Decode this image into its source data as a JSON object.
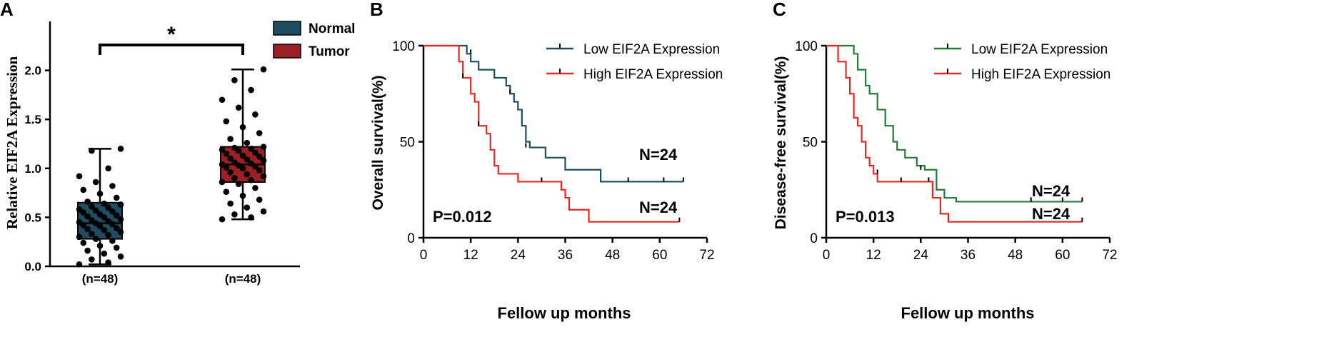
{
  "chart_data": [
    {
      "panel_label": "A",
      "type": "box",
      "ylabel": "Relative EIF2A Expression",
      "ylim": [
        0,
        2.5
      ],
      "yticks": [
        "0.0",
        "0.5",
        "1.0",
        "1.5",
        "2.0"
      ],
      "ytick_values": [
        0,
        0.5,
        1.0,
        1.5,
        2.0
      ],
      "categories": [
        "(n=48)",
        "(n=48)"
      ],
      "legend": [
        "Normal",
        "Tumor"
      ],
      "colors": [
        "#1e4c61",
        "#9c1f25"
      ],
      "significance": "*",
      "series": [
        {
          "name": "Normal",
          "stats": {
            "min": 0.02,
            "q1": 0.28,
            "median": 0.44,
            "q3": 0.65,
            "max": 1.2
          },
          "points": [
            0.02,
            0.04,
            0.07,
            0.1,
            0.13,
            0.16,
            0.19,
            0.21,
            0.24,
            0.26,
            0.28,
            0.3,
            0.32,
            0.33,
            0.35,
            0.37,
            0.38,
            0.39,
            0.41,
            0.42,
            0.43,
            0.44,
            0.45,
            0.46,
            0.47,
            0.48,
            0.5,
            0.51,
            0.52,
            0.53,
            0.55,
            0.56,
            0.57,
            0.58,
            0.6,
            0.61,
            0.63,
            0.64,
            0.66,
            0.7,
            0.74,
            0.78,
            0.82,
            0.86,
            0.92,
            1.0,
            1.18,
            1.2
          ]
        },
        {
          "name": "Tumor",
          "stats": {
            "min": 0.48,
            "q1": 0.86,
            "median": 1.04,
            "q3": 1.22,
            "max": 2.01
          },
          "points": [
            0.48,
            0.5,
            0.53,
            0.56,
            0.6,
            0.64,
            0.68,
            0.72,
            0.76,
            0.8,
            0.84,
            0.86,
            0.88,
            0.9,
            0.92,
            0.94,
            0.96,
            0.98,
            1.0,
            1.01,
            1.02,
            1.03,
            1.04,
            1.05,
            1.06,
            1.08,
            1.09,
            1.1,
            1.12,
            1.13,
            1.15,
            1.16,
            1.18,
            1.19,
            1.2,
            1.21,
            1.22,
            1.26,
            1.3,
            1.36,
            1.42,
            1.48,
            1.55,
            1.62,
            1.7,
            1.8,
            1.9,
            2.01
          ]
        }
      ]
    },
    {
      "panel_label": "B",
      "type": "line",
      "xlabel": "Fellow up months",
      "ylabel": "Overall survival(%)",
      "xlim": [
        0,
        72
      ],
      "ylim": [
        0,
        100
      ],
      "xticks": [
        "0",
        "12",
        "24",
        "36",
        "48",
        "60",
        "72"
      ],
      "xtick_values": [
        0,
        12,
        24,
        36,
        48,
        60,
        72
      ],
      "yticks": [
        "0",
        "50",
        "100"
      ],
      "ytick_values": [
        0,
        50,
        100
      ],
      "pvalue": "P=0.012",
      "annotations": [
        "N=24",
        "N=24"
      ],
      "series": [
        {
          "name": "Low EIF2A Expression",
          "color": "#1e4c61",
          "steps": [
            [
              0,
              100
            ],
            [
              11,
              95.8
            ],
            [
              12,
              91.7
            ],
            [
              14,
              87.5
            ],
            [
              18,
              83.3
            ],
            [
              21,
              79.2
            ],
            [
              22,
              75.0
            ],
            [
              23,
              70.8
            ],
            [
              24,
              66.7
            ],
            [
              25,
              58.3
            ],
            [
              26,
              50.0
            ],
            [
              27,
              47.0
            ],
            [
              31,
              41.7
            ],
            [
              36,
              35.4
            ],
            [
              45,
              29.2
            ],
            [
              66,
              29.2
            ]
          ],
          "censors": [
            [
              12,
              95.8
            ],
            [
              22,
              75.0
            ],
            [
              26,
              47.0
            ],
            [
              52,
              29.2
            ],
            [
              61,
              29.2
            ],
            [
              66,
              29.2
            ]
          ]
        },
        {
          "name": "High EIF2A Expression",
          "color": "#e32a22",
          "steps": [
            [
              0,
              100
            ],
            [
              9,
              91.7
            ],
            [
              10,
              83.3
            ],
            [
              12,
              75.0
            ],
            [
              13,
              70.8
            ],
            [
              14,
              58.3
            ],
            [
              16,
              54.2
            ],
            [
              17,
              45.8
            ],
            [
              18,
              37.5
            ],
            [
              19,
              33.3
            ],
            [
              24,
              29.2
            ],
            [
              35,
              25.0
            ],
            [
              36,
              20.8
            ],
            [
              37,
              14.6
            ],
            [
              42,
              8.3
            ],
            [
              65,
              8.3
            ]
          ],
          "censors": [
            [
              10,
              83.3
            ],
            [
              14,
              58.3
            ],
            [
              30,
              29.2
            ],
            [
              65,
              8.3
            ]
          ]
        }
      ]
    },
    {
      "panel_label": "C",
      "type": "line",
      "xlabel": "Fellow up months",
      "ylabel": "Disease-free survival(%)",
      "xlim": [
        0,
        72
      ],
      "ylim": [
        0,
        100
      ],
      "xticks": [
        "0",
        "12",
        "24",
        "36",
        "48",
        "60",
        "72"
      ],
      "xtick_values": [
        0,
        12,
        24,
        36,
        48,
        60,
        72
      ],
      "yticks": [
        "0",
        "50",
        "100"
      ],
      "ytick_values": [
        0,
        50,
        100
      ],
      "pvalue": "P=0.013",
      "annotations": [
        "N=24",
        "N=24"
      ],
      "series": [
        {
          "name": "Low EIF2A Expression",
          "color": "#257a3a",
          "steps": [
            [
              0,
              100
            ],
            [
              7,
              95.8
            ],
            [
              8,
              87.5
            ],
            [
              10,
              79.2
            ],
            [
              11,
              75.0
            ],
            [
              13,
              66.7
            ],
            [
              15,
              58.3
            ],
            [
              17,
              50.0
            ],
            [
              18,
              45.8
            ],
            [
              20,
              41.7
            ],
            [
              23,
              37.5
            ],
            [
              25,
              35.4
            ],
            [
              28,
              25.0
            ],
            [
              30,
              20.8
            ],
            [
              33,
              18.8
            ],
            [
              65,
              18.8
            ]
          ],
          "censors": [
            [
              24,
              35.4
            ],
            [
              52,
              18.8
            ],
            [
              60,
              18.8
            ],
            [
              65,
              18.8
            ]
          ]
        },
        {
          "name": "High EIF2A Expression",
          "color": "#e32a22",
          "steps": [
            [
              0,
              100
            ],
            [
              3,
              91.7
            ],
            [
              5,
              83.3
            ],
            [
              6,
              75.0
            ],
            [
              7,
              62.5
            ],
            [
              8,
              58.3
            ],
            [
              9,
              50.0
            ],
            [
              10,
              41.7
            ],
            [
              11,
              37.5
            ],
            [
              12,
              33.3
            ],
            [
              13,
              29.2
            ],
            [
              27,
              20.8
            ],
            [
              29,
              12.5
            ],
            [
              31,
              8.3
            ],
            [
              65,
              8.3
            ]
          ],
          "censors": [
            [
              13,
              33.3
            ],
            [
              19,
              29.2
            ],
            [
              26,
              29.2
            ],
            [
              65,
              8.3
            ]
          ]
        }
      ]
    }
  ]
}
